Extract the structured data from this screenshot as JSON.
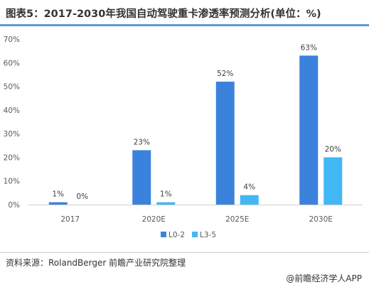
{
  "header": {
    "title": "图表5：2017-2030年我国自动驾驶重卡渗透率预测分析(单位：%)"
  },
  "footer": {
    "source": "资料来源：RolandBerger 前瞻产业研究院整理",
    "credit": "@前瞻经济学人APP"
  },
  "colors": {
    "series_1": "#3b82dc",
    "series_2": "#41b8f5",
    "title_rule": "#5b9bd5"
  },
  "chart_data": {
    "type": "bar",
    "title": "图表5：2017-2030年我国自动驾驶重卡渗透率预测分析(单位：%)",
    "categories": [
      "2017",
      "2020E",
      "2025E",
      "2030E"
    ],
    "series": [
      {
        "name": "L0-2",
        "values": [
          1,
          23,
          52,
          63
        ],
        "labels": [
          "1%",
          "23%",
          "52%",
          "63%"
        ]
      },
      {
        "name": "L3-5",
        "values": [
          0,
          1,
          4,
          20
        ],
        "labels": [
          "0%",
          "1%",
          "4%",
          "20%"
        ]
      }
    ],
    "yticks": [
      "0%",
      "10%",
      "20%",
      "30%",
      "40%",
      "50%",
      "60%",
      "70%"
    ],
    "ylim": [
      0,
      70
    ],
    "xlabel": "",
    "ylabel": "",
    "grid": false,
    "legend_position": "bottom-center"
  }
}
